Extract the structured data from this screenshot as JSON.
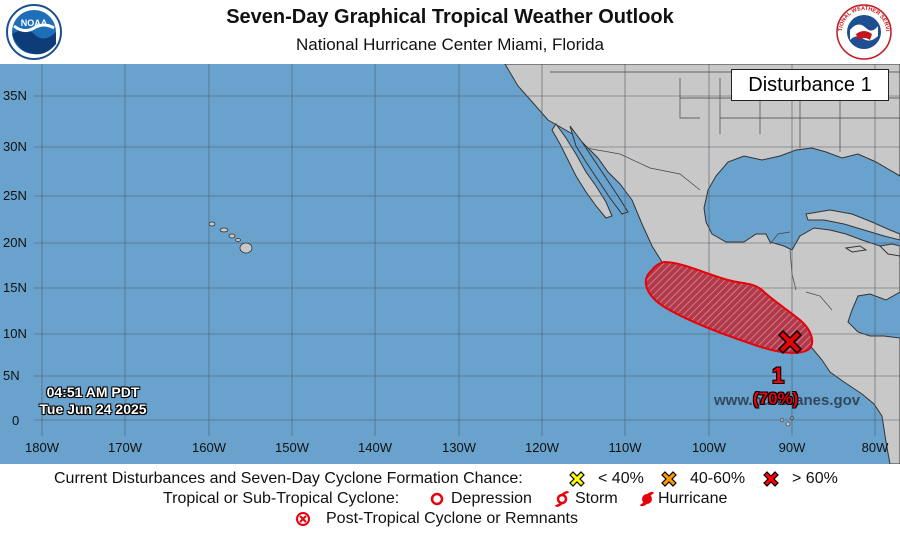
{
  "header": {
    "title": "Seven-Day Graphical Tropical Weather Outlook",
    "subtitle": "National Hurricane Center  Miami, Florida"
  },
  "logos": {
    "left": {
      "icon": "noaa-logo",
      "text": "NOAA"
    },
    "right": {
      "icon": "nws-logo",
      "text": "NATIONAL WEATHER SERVICE"
    }
  },
  "map": {
    "ocean_color": "#69a3cd",
    "land_color": "#c8c8c8",
    "latitudes": [
      "35N",
      "30N",
      "25N",
      "20N",
      "15N",
      "10N",
      "5N",
      "0"
    ],
    "longitudes": [
      "180W",
      "170W",
      "160W",
      "150W",
      "140W",
      "130W",
      "120W",
      "110W",
      "100W",
      "90W",
      "80W"
    ],
    "disturbance_box": "Disturbance 1",
    "timestamp": {
      "time": "04:51 AM PDT",
      "date": "Tue Jun 24 2025"
    },
    "website": "www.hurricanes.gov",
    "system": {
      "number": "1",
      "chance": "(70%)",
      "marker_color": "#e8000b",
      "area_color": "#b03a4a"
    }
  },
  "legend": {
    "row1_label": "Current Disturbances and Seven-Day Cyclone Formation Chance:",
    "chance_low": "< 40%",
    "chance_mid": "40-60%",
    "chance_high": "> 60%",
    "color_low": "#ffff00",
    "color_mid": "#ff9900",
    "color_high": "#ff0000",
    "row2_label": "Tropical or Sub-Tropical Cyclone:",
    "depression": "Depression",
    "storm": "Storm",
    "hurricane": "Hurricane",
    "row3_label": "Post-Tropical Cyclone or Remnants"
  }
}
